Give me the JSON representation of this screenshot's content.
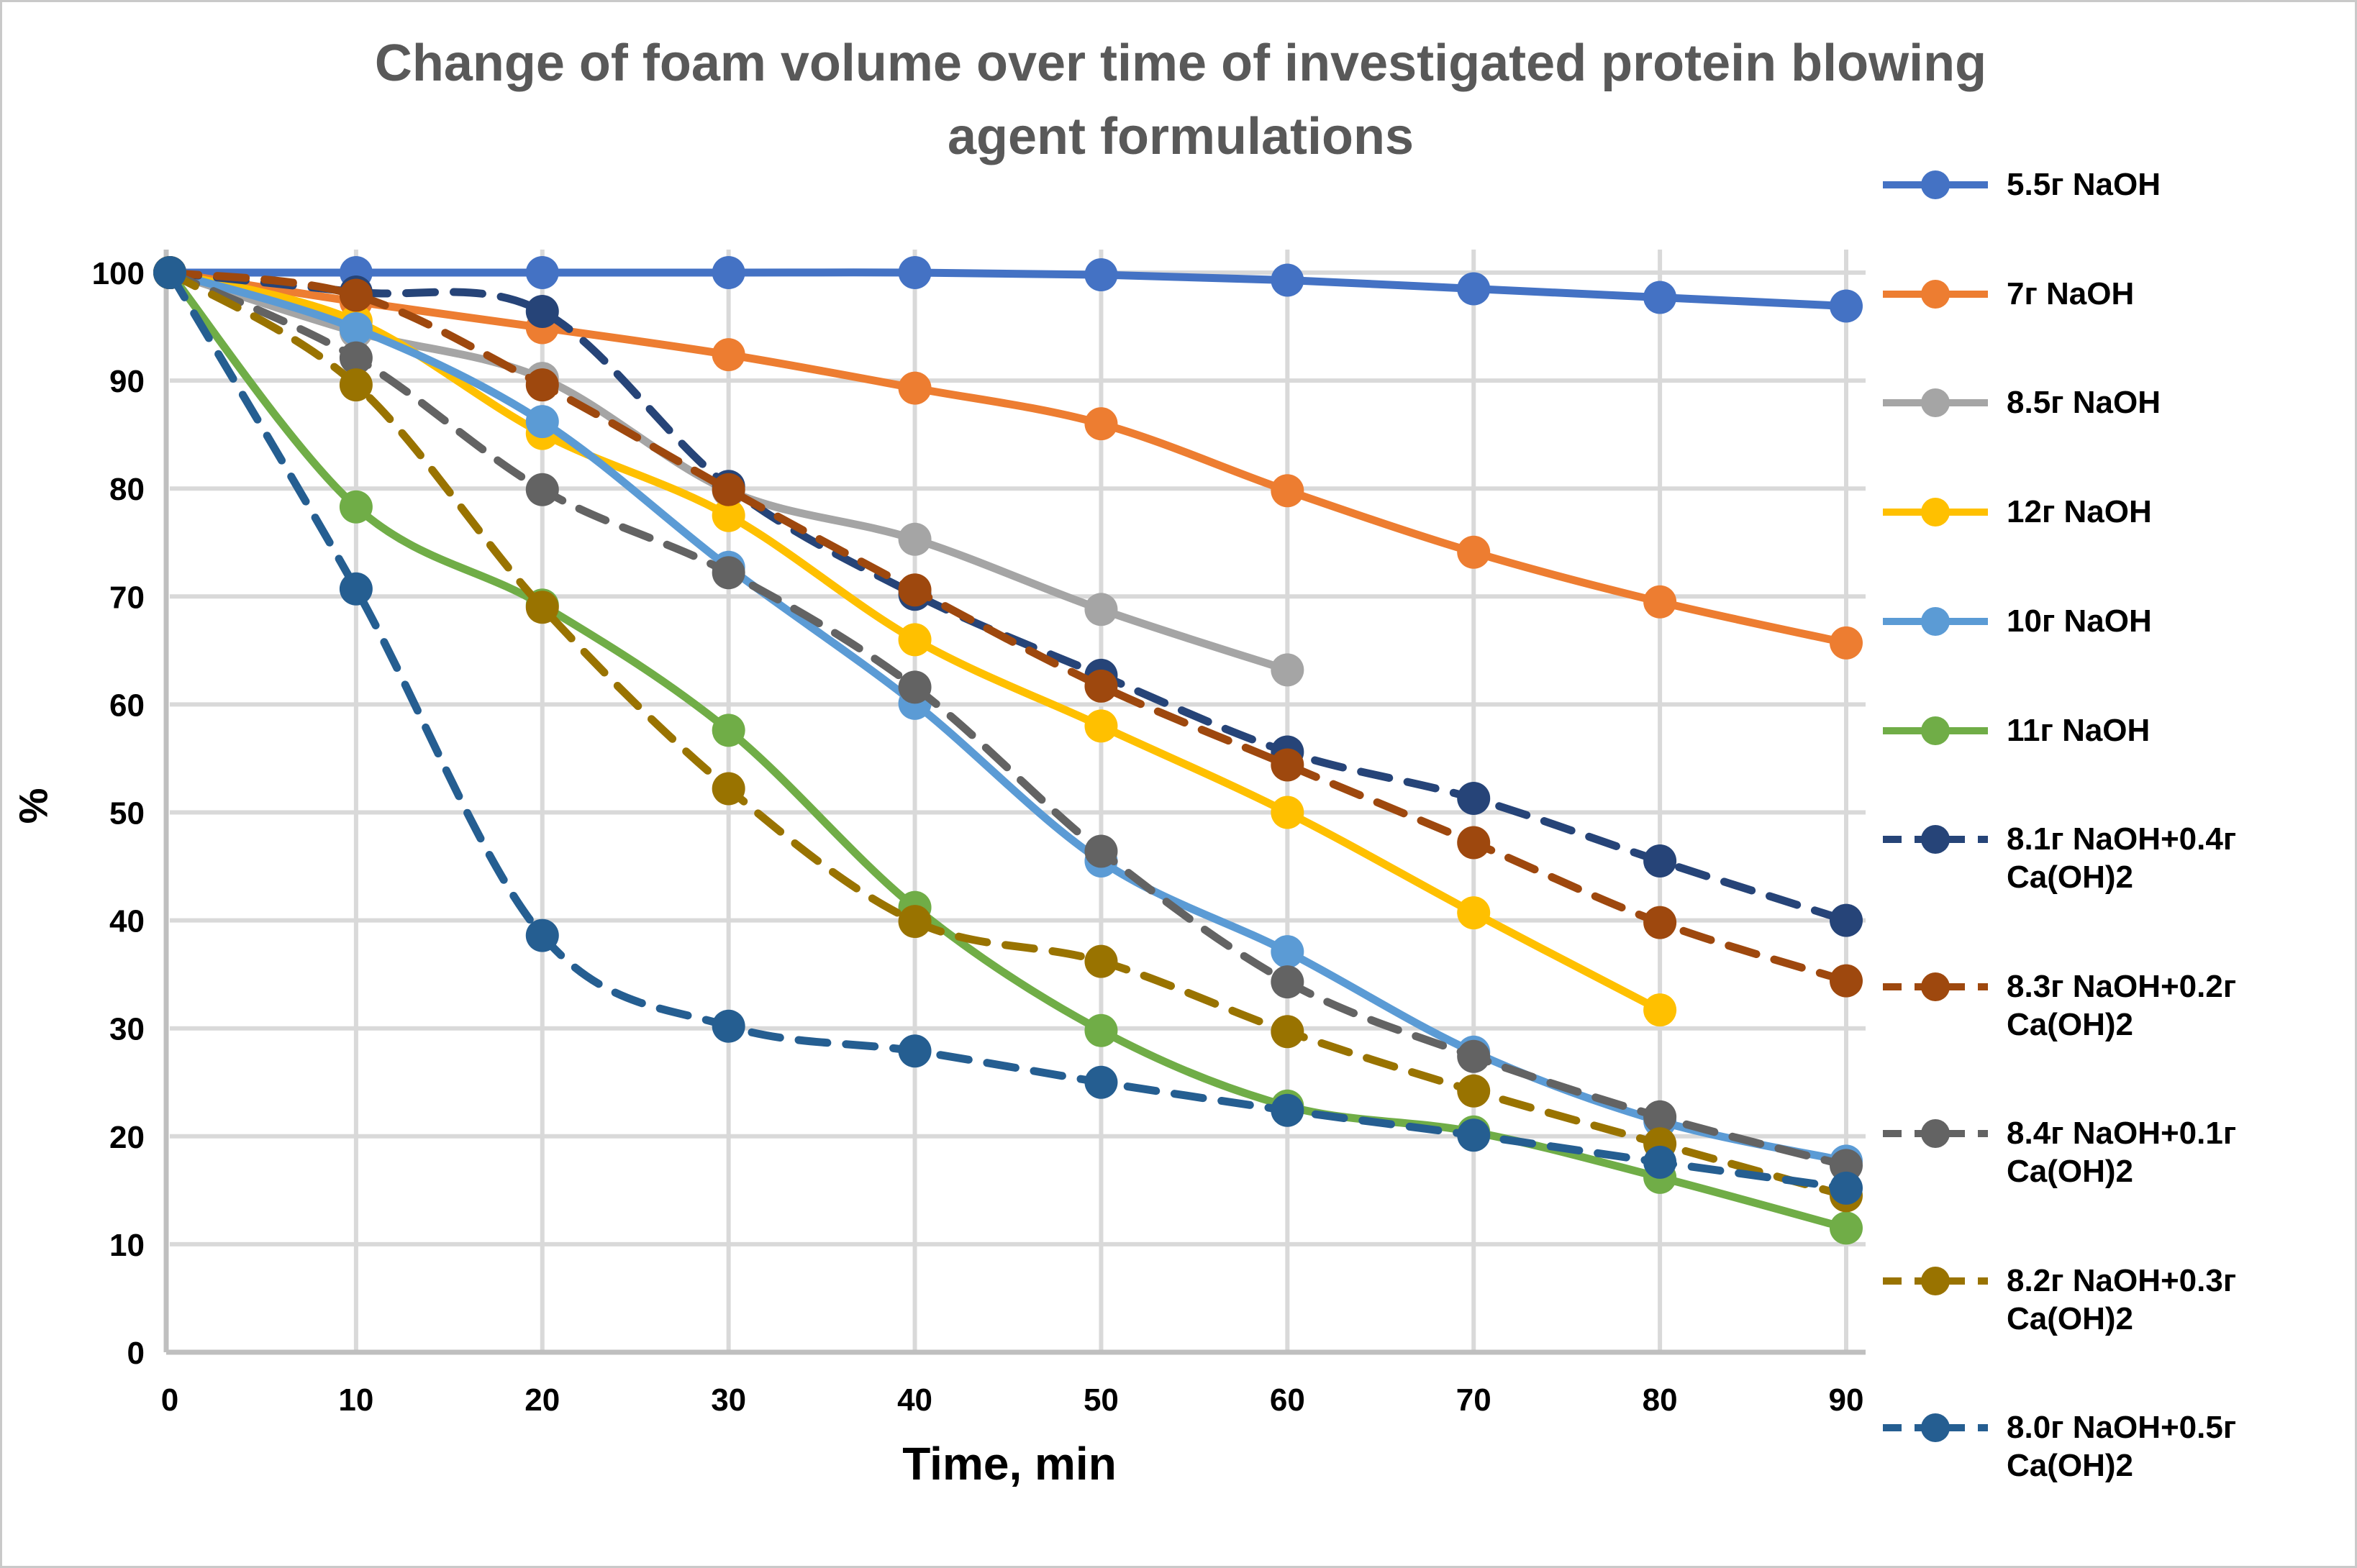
{
  "figure": {
    "title_line1": "Change of foam volume over time of investigated protein blowing",
    "title_line2": "agent formulations",
    "title_color": "#595959"
  },
  "style": {
    "grid_color": "#d9d9d9",
    "axis_color": "#bfbfbf",
    "background": "#ffffff",
    "title_color": "#595959",
    "tick_color": "#000000"
  },
  "chart_data": {
    "type": "line",
    "title": "Change of foam volume over time of investigated protein blowing agent formulations",
    "xlabel": "Time, min",
    "ylabel": "%",
    "x": [
      0,
      10,
      20,
      30,
      40,
      50,
      60,
      70,
      80,
      90
    ],
    "x_ticks": [
      0,
      10,
      20,
      30,
      40,
      50,
      60,
      70,
      80,
      90
    ],
    "y_ticks": [
      0,
      10,
      20,
      30,
      40,
      50,
      60,
      70,
      80,
      90,
      100
    ],
    "xlim": [
      0,
      90
    ],
    "ylim": [
      0,
      100
    ],
    "grid": true,
    "smoothed_lines": true,
    "legend_position": "right",
    "series": [
      {
        "name": "5.5г NaOH",
        "color": "#4472C4",
        "dashed": false,
        "values": [
          100,
          100,
          100,
          100,
          100,
          99.8,
          99.3,
          98.5,
          97.7,
          96.9
        ]
      },
      {
        "name": "7г NaOH",
        "color": "#ED7D31",
        "dashed": false,
        "values": [
          100,
          97.3,
          94.9,
          92.4,
          89.3,
          86.0,
          79.8,
          74.1,
          69.5,
          65.7
        ]
      },
      {
        "name": "8.5г NaOH",
        "color": "#A5A5A5",
        "dashed": false,
        "values": [
          100,
          94.5,
          90.2,
          79.8,
          75.3,
          68.8,
          63.2,
          null,
          null,
          null
        ]
      },
      {
        "name": "12г NaOH",
        "color": "#FFC000",
        "dashed": false,
        "values": [
          100,
          95.5,
          85.1,
          77.5,
          66.0,
          58.0,
          50.0,
          40.7,
          31.7,
          null
        ]
      },
      {
        "name": "10г NaOH",
        "color": "#5B9BD5",
        "dashed": false,
        "values": [
          100,
          94.8,
          86.2,
          72.7,
          60.1,
          45.5,
          37.1,
          27.8,
          21.4,
          17.7
        ]
      },
      {
        "name": "11г NaOH",
        "color": "#70AD47",
        "dashed": false,
        "values": [
          100,
          78.3,
          69.2,
          57.6,
          41.2,
          29.8,
          22.8,
          20.4,
          16.2,
          11.5
        ]
      },
      {
        "name": "8.1г NaOH+0.4г Ca(OH)2",
        "color": "#264478",
        "dashed": true,
        "values": [
          100,
          98.2,
          96.4,
          80.2,
          70.2,
          62.7,
          55.6,
          51.3,
          45.5,
          40.0
        ]
      },
      {
        "name": "8.3г NaOH+0.2г Ca(OH)2",
        "color": "#9E480E",
        "dashed": true,
        "values": [
          100,
          97.9,
          89.6,
          79.9,
          70.6,
          61.7,
          54.4,
          47.2,
          39.8,
          34.4
        ]
      },
      {
        "name": "8.4г NaOH+0.1г Ca(OH)2",
        "color": "#636363",
        "dashed": true,
        "values": [
          100,
          92.1,
          79.9,
          72.2,
          61.6,
          46.4,
          34.3,
          27.4,
          21.8,
          17.3
        ]
      },
      {
        "name": "8.2г NaOH+0.3г Ca(OH)2",
        "color": "#997300",
        "dashed": true,
        "values": [
          100,
          89.6,
          69.0,
          52.2,
          39.9,
          36.2,
          29.7,
          24.2,
          19.3,
          14.5
        ]
      },
      {
        "name": "8.0г NaOH+0.5г Ca(OH)2",
        "color": "#255E91",
        "dashed": true,
        "values": [
          100,
          70.7,
          38.6,
          30.2,
          27.9,
          25.0,
          22.4,
          20.1,
          17.6,
          15.2
        ]
      }
    ]
  },
  "legend": {
    "items": [
      {
        "lines": [
          "5.5г NaOH"
        ]
      },
      {
        "lines": [
          "7г NaOH"
        ]
      },
      {
        "lines": [
          "8.5г NaOH"
        ]
      },
      {
        "lines": [
          "12г NaOH"
        ]
      },
      {
        "lines": [
          "10г NaOH"
        ]
      },
      {
        "lines": [
          "11г NaOH"
        ]
      },
      {
        "lines": [
          "8.1г NaOH+0.4г",
          "Ca(OH)2"
        ]
      },
      {
        "lines": [
          "8.3г NaOH+0.2г",
          "Ca(OH)2"
        ]
      },
      {
        "lines": [
          "8.4г NaOH+0.1г",
          "Ca(OH)2"
        ]
      },
      {
        "lines": [
          "8.2г NaOH+0.3г",
          "Ca(OH)2"
        ]
      },
      {
        "lines": [
          "8.0г NaOH+0.5г",
          "Ca(OH)2"
        ]
      }
    ]
  },
  "axis": {
    "x_title": "Time, min",
    "y_title": "%"
  }
}
